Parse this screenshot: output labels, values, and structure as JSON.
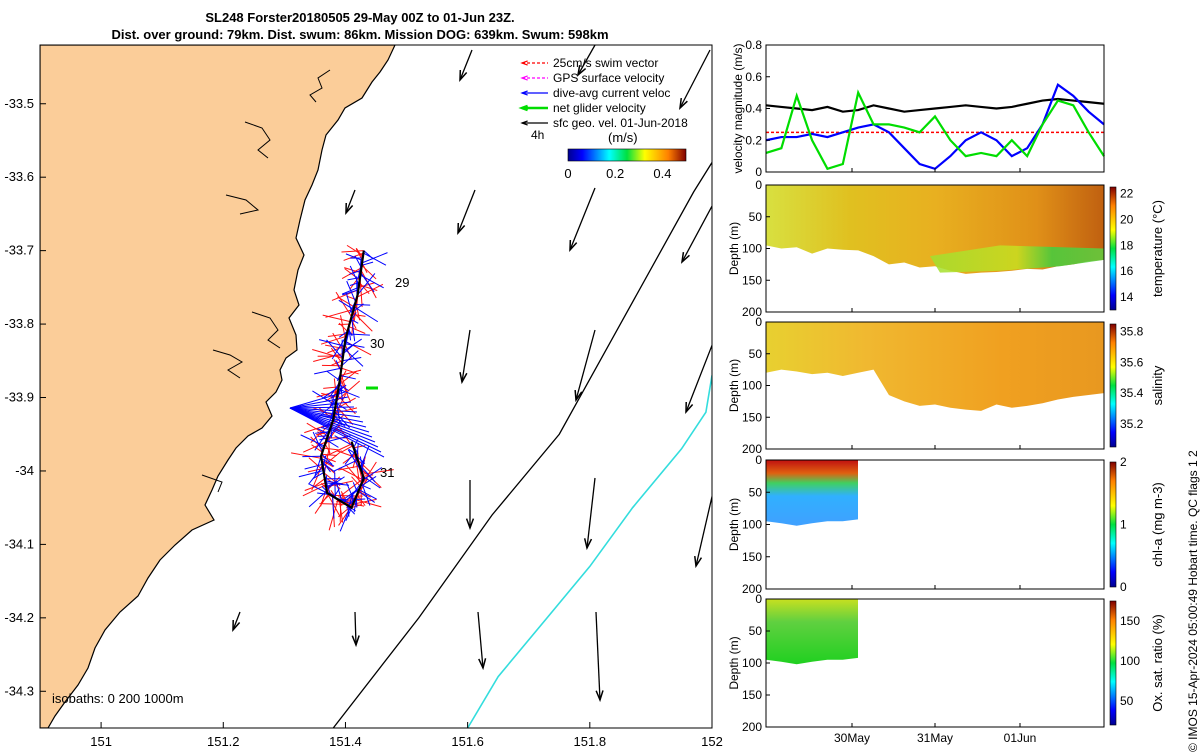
{
  "header": {
    "title": "SL248 Forster20180505 29-May 00Z to 01-Jun 23Z.",
    "subtitle": "Dist. over ground: 79km. Dist. swum: 86km. Mission DOG: 639km. Swum: 598km"
  },
  "credit": "© IMOS 15-Apr-2024 05:00:49 Hobart time. QC flags 1  2",
  "chart_data": [
    {
      "type": "map",
      "xlim": [
        150.9,
        152.0
      ],
      "ylim": [
        -34.35,
        -33.42
      ],
      "x_ticks": [
        "151",
        "151.2",
        "151.4",
        "151.6",
        "151.8",
        "152"
      ],
      "y_ticks": [
        "-33.5",
        "-33.6",
        "-33.7",
        "-33.8",
        "-33.9",
        "-34",
        "-34.1",
        "-34.2",
        "-34.3"
      ],
      "legend": [
        {
          "label": "25cm/s swim vector",
          "color": "#ff0000",
          "style": "dashed-arrow"
        },
        {
          "label": "GPS surface velocity",
          "color": "#ff00ff",
          "style": "dashed-arrow"
        },
        {
          "label": "dive-avg current veloc",
          "color": "#0000ff",
          "style": "arrow"
        },
        {
          "label": "net glider velocity",
          "color": "#00dd00",
          "style": "arrow"
        },
        {
          "label": "sfc geo. vel. 01-Jun-2018",
          "color": "#000000",
          "style": "arrow"
        }
      ],
      "colorbar": {
        "title": "(m/s)",
        "ticks": [
          "0",
          "0.2",
          "0.4"
        ],
        "range": [
          0,
          0.5
        ]
      },
      "day_labels": [
        "29",
        "30",
        "31"
      ],
      "corner_label": "4h",
      "isobath_label": "isobaths: 0   200  1000m",
      "isobath_200m": [
        [
          151.38,
          -34.35
        ],
        [
          151.52,
          -34.2
        ],
        [
          151.64,
          -34.06
        ],
        [
          151.75,
          -33.95
        ],
        [
          151.85,
          -33.8
        ],
        [
          151.97,
          -33.62
        ],
        [
          152.0,
          -33.58
        ]
      ],
      "isobath_1000m": [
        [
          151.6,
          -34.35
        ],
        [
          151.65,
          -34.28
        ],
        [
          151.73,
          -34.2
        ],
        [
          151.8,
          -34.13
        ],
        [
          151.87,
          -34.05
        ],
        [
          151.95,
          -33.97
        ],
        [
          151.99,
          -33.92
        ],
        [
          152.0,
          -33.87
        ]
      ],
      "track": [
        [
          151.43,
          -33.7
        ],
        [
          151.42,
          -33.76
        ],
        [
          151.4,
          -33.82
        ],
        [
          151.39,
          -33.88
        ],
        [
          151.38,
          -33.93
        ],
        [
          151.36,
          -33.98
        ],
        [
          151.37,
          -34.03
        ],
        [
          151.41,
          -34.05
        ],
        [
          151.43,
          -34.01
        ],
        [
          151.41,
          -33.96
        ]
      ]
    },
    {
      "type": "line",
      "ylabel": "velocity magnitude (m/s)",
      "ylim": [
        0,
        0.8
      ],
      "y_ticks": [
        "0",
        "0.2",
        "0.4",
        "0.6",
        "0.8"
      ],
      "series": [
        {
          "name": "sfc geo. vel.",
          "color": "#000000",
          "values": [
            0.42,
            0.41,
            0.4,
            0.39,
            0.41,
            0.38,
            0.39,
            0.42,
            0.4,
            0.38,
            0.39,
            0.4,
            0.41,
            0.42,
            0.41,
            0.4,
            0.41,
            0.43,
            0.45,
            0.46,
            0.45,
            0.44,
            0.43
          ]
        },
        {
          "name": "swim",
          "color": "#ff0000",
          "values": [
            0.25,
            0.25,
            0.25,
            0.25,
            0.25,
            0.25,
            0.25,
            0.25,
            0.25,
            0.25,
            0.25,
            0.25,
            0.25,
            0.25,
            0.25,
            0.25,
            0.25,
            0.25,
            0.25,
            0.25,
            0.25,
            0.25,
            0.25
          ]
        },
        {
          "name": "dive-avg current",
          "color": "#0000ff",
          "values": [
            0.2,
            0.22,
            0.22,
            0.24,
            0.22,
            0.25,
            0.28,
            0.3,
            0.25,
            0.15,
            0.05,
            0.02,
            0.1,
            0.2,
            0.25,
            0.2,
            0.1,
            0.15,
            0.3,
            0.55,
            0.48,
            0.38,
            0.3
          ]
        },
        {
          "name": "net glider velocity",
          "color": "#00dd00",
          "values": [
            0.12,
            0.15,
            0.48,
            0.2,
            0.02,
            0.05,
            0.5,
            0.3,
            0.3,
            0.28,
            0.25,
            0.35,
            0.2,
            0.1,
            0.12,
            0.1,
            0.2,
            0.1,
            0.3,
            0.45,
            0.42,
            0.25,
            0.1
          ]
        }
      ]
    },
    {
      "type": "heatmap",
      "ylabel": "Depth (m)",
      "cbar_label": "temperature (°C)",
      "ylim": [
        0,
        200
      ],
      "y_ticks": [
        "0",
        "50",
        "100",
        "150",
        "200"
      ],
      "cbar_ticks": [
        "14",
        "16",
        "18",
        "20",
        "22"
      ],
      "cbar_range": [
        13,
        22.5
      ],
      "bottom_depth": [
        95,
        100,
        98,
        108,
        100,
        102,
        103,
        112,
        125,
        122,
        130,
        128,
        135,
        140,
        138,
        137,
        135,
        132,
        133,
        128,
        125,
        120,
        118
      ]
    },
    {
      "type": "heatmap",
      "ylabel": "Depth (m)",
      "cbar_label": "salinity",
      "ylim": [
        0,
        200
      ],
      "y_ticks": [
        "0",
        "50",
        "100",
        "150",
        "200"
      ],
      "cbar_ticks": [
        "35.2",
        "35.4",
        "35.6",
        "35.8"
      ],
      "cbar_range": [
        35.05,
        35.85
      ],
      "bottom_depth": [
        80,
        75,
        78,
        82,
        80,
        85,
        80,
        75,
        115,
        125,
        132,
        130,
        135,
        138,
        140,
        130,
        135,
        132,
        128,
        122,
        118,
        115,
        112
      ]
    },
    {
      "type": "heatmap",
      "ylabel": "Depth (m)",
      "cbar_label": "chl-a (mg m-3)",
      "ylim": [
        0,
        200
      ],
      "y_ticks": [
        "0",
        "50",
        "100",
        "150",
        "200"
      ],
      "cbar_ticks": [
        "0",
        "1",
        "2"
      ],
      "cbar_range": [
        0,
        2
      ],
      "bottom_depth": [
        95,
        98,
        102,
        98,
        95,
        95,
        92
      ]
    },
    {
      "type": "heatmap",
      "ylabel": "Depth (m)",
      "cbar_label": "Ox. sat. ratio (%)",
      "ylim": [
        0,
        200
      ],
      "y_ticks": [
        "0",
        "50",
        "100",
        "150",
        "200"
      ],
      "cbar_ticks": [
        "50",
        "100",
        "150"
      ],
      "cbar_range": [
        20,
        175
      ],
      "bottom_depth": [
        95,
        98,
        102,
        98,
        95,
        95,
        92
      ]
    }
  ],
  "time_axis": {
    "ticks": [
      "30May",
      "31May",
      "01Jun"
    ]
  }
}
